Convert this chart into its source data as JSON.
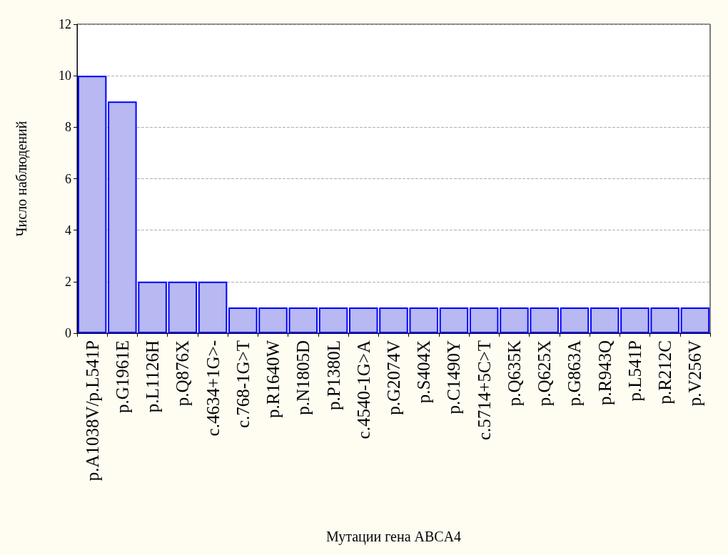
{
  "chart_data": {
    "type": "bar",
    "xlabel": "Мутации гена ABCA4",
    "ylabel": "Число наблюдений",
    "categories": [
      "p.A1038V/p.L541P",
      "p.G1961E",
      "p.L1126H",
      "p.Q876X",
      "c.4634+1G>-",
      "c.768-1G>T",
      "p.R1640W",
      "p.N1805D",
      "p.P1380L",
      "c.4540-1G>A",
      "p.G2074V",
      "p.S404X",
      "p.C1490Y",
      "c.5714+5C>T",
      "p.Q635K",
      "p.Q625X",
      "p.G863A",
      "p.R943Q",
      "p.L541P",
      "p.R212C",
      "p.V256V"
    ],
    "values": [
      10,
      9,
      2,
      2,
      2,
      1,
      1,
      1,
      1,
      1,
      1,
      1,
      1,
      1,
      1,
      1,
      1,
      1,
      1,
      1,
      1
    ],
    "color": "#b8b8f2",
    "ylim": [
      0,
      12
    ],
    "yticks": [
      0,
      2,
      4,
      6,
      8,
      10,
      12
    ],
    "grid": "y"
  }
}
